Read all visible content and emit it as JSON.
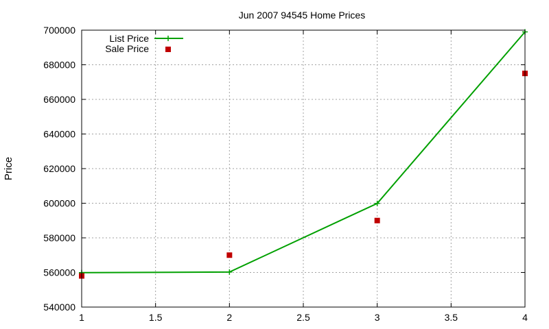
{
  "chart_data": {
    "type": "line",
    "title": "Jun 2007 94545 Home Prices",
    "xlabel": "",
    "ylabel": "Price",
    "xlim": [
      1,
      4
    ],
    "ylim": [
      540000,
      700000
    ],
    "x_ticks": [
      "1",
      "1.5",
      "2",
      "2.5",
      "3",
      "3.5",
      "4"
    ],
    "y_ticks": [
      "540000",
      "560000",
      "580000",
      "600000",
      "620000",
      "640000",
      "660000",
      "680000",
      "700000"
    ],
    "grid": true,
    "legend_position": "top-left",
    "series": [
      {
        "name": "List Price",
        "kind": "line",
        "marker": "plus",
        "color": "#00a000",
        "x": [
          1,
          2,
          3,
          4
        ],
        "y": [
          559900,
          560250,
          599900,
          699000
        ]
      },
      {
        "name": "Sale Price",
        "kind": "scatter",
        "marker": "square",
        "color": "#c00000",
        "x": [
          1,
          2,
          3,
          4
        ],
        "y": [
          558000,
          570000,
          590000,
          675000
        ]
      }
    ]
  }
}
